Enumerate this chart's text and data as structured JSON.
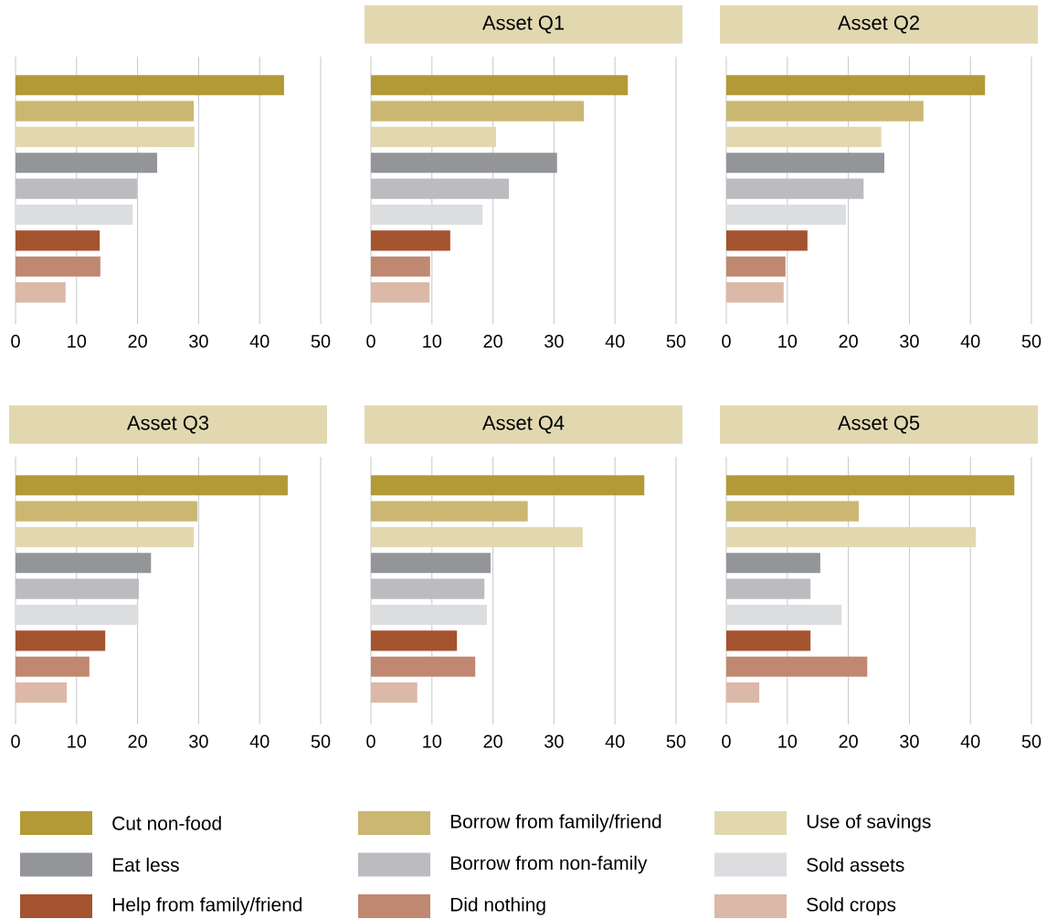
{
  "chart_data": [
    {
      "type": "bar",
      "orientation": "horizontal",
      "categories": [
        null
      ],
      "xlim": [
        0,
        50
      ],
      "xticks": [
        0,
        10,
        20,
        30,
        40,
        50
      ],
      "grid": "x",
      "legend": "bottom",
      "series": [
        {
          "name": "Cut non-food",
          "color": "#b39a37",
          "values": [
            44.0
          ]
        },
        {
          "name": "Borrow from family/friend",
          "color": "#cbb771",
          "values": [
            29.2
          ]
        },
        {
          "name": "Use of savings",
          "color": "#e2d8b0",
          "values": [
            29.3
          ]
        },
        {
          "name": "Eat less",
          "color": "#939598",
          "values": [
            23.2
          ]
        },
        {
          "name": "Borrow from non-family",
          "color": "#bbbcbf",
          "values": [
            19.9
          ]
        },
        {
          "name": "Sold assets",
          "color": "#dcdddf",
          "values": [
            19.2
          ]
        },
        {
          "name": "Help from family/friend",
          "color": "#a4532f",
          "values": [
            13.8
          ]
        },
        {
          "name": "Did nothing",
          "color": "#c08870",
          "values": [
            13.9
          ]
        },
        {
          "name": "Sold crops",
          "color": "#dcb8a8",
          "values": [
            8.2
          ]
        }
      ]
    },
    {
      "type": "bar",
      "orientation": "horizontal",
      "title": "Asset Q1",
      "categories": [
        null
      ],
      "xlim": [
        0,
        50
      ],
      "xticks": [
        0,
        10,
        20,
        30,
        40,
        50
      ],
      "grid": "x",
      "series": [
        {
          "color": "#b39a37",
          "values": [
            42.1
          ]
        },
        {
          "color": "#cbb771",
          "values": [
            34.9
          ]
        },
        {
          "color": "#e2d8b0",
          "values": [
            20.5
          ]
        },
        {
          "color": "#939598",
          "values": [
            30.5
          ]
        },
        {
          "color": "#bbbcbf",
          "values": [
            22.6
          ]
        },
        {
          "color": "#dcdddf",
          "values": [
            18.3
          ]
        },
        {
          "color": "#a4532f",
          "values": [
            13.0
          ]
        },
        {
          "color": "#c08870",
          "values": [
            9.7
          ]
        },
        {
          "color": "#dcb8a8",
          "values": [
            9.6
          ]
        }
      ]
    },
    {
      "type": "bar",
      "orientation": "horizontal",
      "title": "Asset Q2",
      "categories": [
        null
      ],
      "xlim": [
        0,
        50
      ],
      "xticks": [
        0,
        10,
        20,
        30,
        40,
        50
      ],
      "grid": "x",
      "series": [
        {
          "color": "#b39a37",
          "values": [
            42.4
          ]
        },
        {
          "color": "#cbb771",
          "values": [
            32.3
          ]
        },
        {
          "color": "#e2d8b0",
          "values": [
            25.4
          ]
        },
        {
          "color": "#939598",
          "values": [
            25.9
          ]
        },
        {
          "color": "#bbbcbf",
          "values": [
            22.5
          ]
        },
        {
          "color": "#dcdddf",
          "values": [
            19.6
          ]
        },
        {
          "color": "#a4532f",
          "values": [
            13.3
          ]
        },
        {
          "color": "#c08870",
          "values": [
            9.7
          ]
        },
        {
          "color": "#dcb8a8",
          "values": [
            9.4
          ]
        }
      ]
    },
    {
      "type": "bar",
      "orientation": "horizontal",
      "title": "Asset Q3",
      "categories": [
        null
      ],
      "xlim": [
        0,
        50
      ],
      "xticks": [
        0,
        10,
        20,
        30,
        40,
        50
      ],
      "grid": "x",
      "series": [
        {
          "color": "#b39a37",
          "values": [
            44.6
          ]
        },
        {
          "color": "#cbb771",
          "values": [
            29.8
          ]
        },
        {
          "color": "#e2d8b0",
          "values": [
            29.2
          ]
        },
        {
          "color": "#939598",
          "values": [
            22.2
          ]
        },
        {
          "color": "#bbbcbf",
          "values": [
            20.2
          ]
        },
        {
          "color": "#dcdddf",
          "values": [
            20.1
          ]
        },
        {
          "color": "#a4532f",
          "values": [
            14.7
          ]
        },
        {
          "color": "#c08870",
          "values": [
            12.1
          ]
        },
        {
          "color": "#dcb8a8",
          "values": [
            8.4
          ]
        }
      ]
    },
    {
      "type": "bar",
      "orientation": "horizontal",
      "title": "Asset Q4",
      "categories": [
        null
      ],
      "xlim": [
        0,
        50
      ],
      "xticks": [
        0,
        10,
        20,
        30,
        40,
        50
      ],
      "grid": "x",
      "series": [
        {
          "color": "#b39a37",
          "values": [
            44.8
          ]
        },
        {
          "color": "#cbb771",
          "values": [
            25.7
          ]
        },
        {
          "color": "#e2d8b0",
          "values": [
            34.7
          ]
        },
        {
          "color": "#939598",
          "values": [
            19.6
          ]
        },
        {
          "color": "#bbbcbf",
          "values": [
            18.6
          ]
        },
        {
          "color": "#dcdddf",
          "values": [
            19.0
          ]
        },
        {
          "color": "#a4532f",
          "values": [
            14.1
          ]
        },
        {
          "color": "#c08870",
          "values": [
            17.1
          ]
        },
        {
          "color": "#dcb8a8",
          "values": [
            7.6
          ]
        }
      ]
    },
    {
      "type": "bar",
      "orientation": "horizontal",
      "title": "Asset Q5",
      "categories": [
        null
      ],
      "xlim": [
        0,
        50
      ],
      "xticks": [
        0,
        10,
        20,
        30,
        40,
        50
      ],
      "grid": "x",
      "series": [
        {
          "color": "#b39a37",
          "values": [
            47.2
          ]
        },
        {
          "color": "#cbb771",
          "values": [
            21.7
          ]
        },
        {
          "color": "#e2d8b0",
          "values": [
            40.9
          ]
        },
        {
          "color": "#939598",
          "values": [
            15.4
          ]
        },
        {
          "color": "#bbbcbf",
          "values": [
            13.8
          ]
        },
        {
          "color": "#dcdddf",
          "values": [
            18.9
          ]
        },
        {
          "color": "#a4532f",
          "values": [
            13.8
          ]
        },
        {
          "color": "#c08870",
          "values": [
            23.1
          ]
        },
        {
          "color": "#dcb8a8",
          "values": [
            5.4
          ]
        }
      ]
    }
  ]
}
